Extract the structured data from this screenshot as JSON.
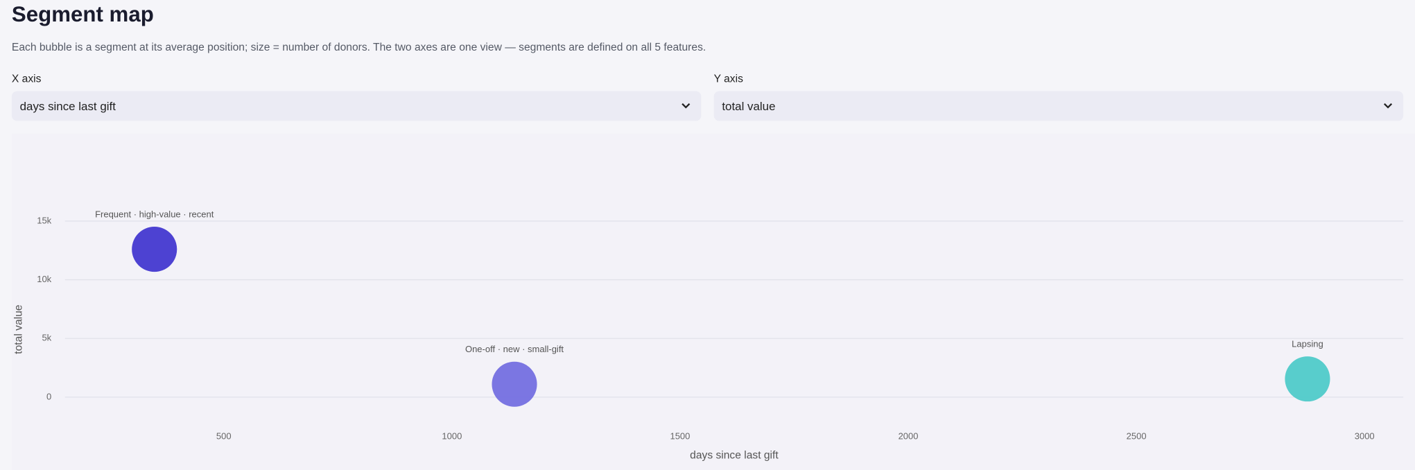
{
  "header": {
    "title": "Segment map",
    "subtitle": "Each bubble is a segment at its average position; size = number of donors. The two axes are one view — segments are defined on all 5 features."
  },
  "controls": {
    "x_label": "X axis",
    "x_value": "days since last gift",
    "y_label": "Y axis",
    "y_value": "total value"
  },
  "chart_data": {
    "type": "bubble",
    "x_label": "days since last gift",
    "y_label": "total value",
    "series": [
      {
        "name": "Frequent · high-value · recent",
        "color": "#4338d0",
        "x": [
          348
        ],
        "values": [
          12600
        ]
      },
      {
        "name": "One-off · new · small-gift",
        "color": "#746fe0",
        "x": [
          1137
        ],
        "values": [
          1100
        ]
      },
      {
        "name": "Lapsing",
        "color": "#4fcac9",
        "x": [
          2875
        ],
        "values": [
          1550
        ]
      }
    ],
    "xlim": [
      152,
      3085
    ],
    "xticks": [
      500,
      1000,
      1500,
      2000,
      2500,
      3000
    ],
    "ylim": [
      -2300,
      20000
    ],
    "yticks": [
      0,
      {
        "value": 5000,
        "label": "5k"
      },
      {
        "value": 10000,
        "label": "10k"
      },
      {
        "value": 15000,
        "label": "15k"
      }
    ],
    "grid": true
  }
}
